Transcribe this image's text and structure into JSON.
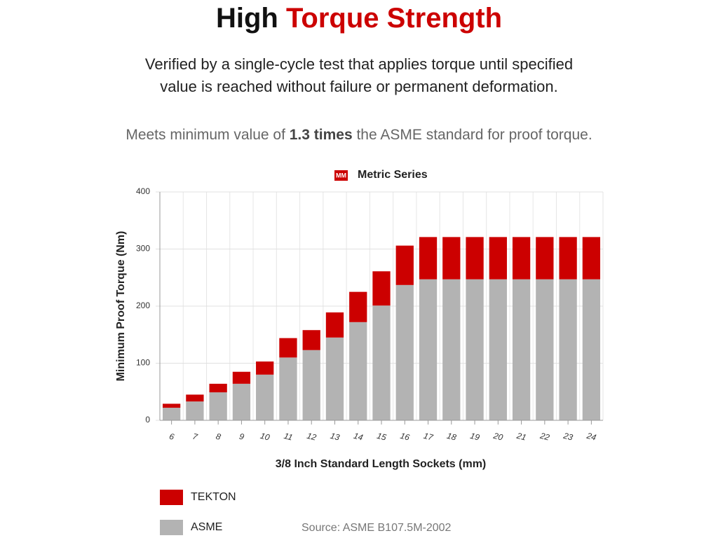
{
  "header": {
    "title_lead": "High",
    "title_accent": "Torque Strength",
    "subtitle_lines": [
      "Verified by a single-cycle test that applies torque until specified",
      "value is reached without failure or permanent deformation."
    ],
    "note_parts": [
      "Meets minimum value of ",
      "1.3 times",
      " the ASME standard for proof torque."
    ]
  },
  "chart_data": {
    "type": "bar",
    "stacked": true,
    "legend_badge": "MM",
    "legend_title": "Metric Series",
    "x_label": "3/8 Inch Standard Length Sockets (mm)",
    "y_label": "Minimum Proof Torque (Nm)",
    "categories": [
      "6",
      "7",
      "8",
      "9",
      "10",
      "11",
      "12",
      "13",
      "14",
      "15",
      "16",
      "17",
      "18",
      "19",
      "20",
      "21",
      "22",
      "23",
      "24"
    ],
    "series": [
      {
        "name": "ASME",
        "color": "#b3b3b3",
        "values": [
          22,
          33,
          49,
          64,
          80,
          110,
          123,
          145,
          172,
          201,
          237,
          247,
          247,
          247,
          247,
          247,
          247,
          247,
          247
        ]
      },
      {
        "name": "TEKTON",
        "color": "#cc0000",
        "values": [
          7,
          12,
          15,
          21,
          23,
          34,
          35,
          44,
          53,
          60,
          69,
          74,
          74,
          74,
          74,
          74,
          74,
          74,
          74
        ]
      }
    ],
    "ylim": [
      0,
      400
    ],
    "yticks": [
      0,
      100,
      200,
      300,
      400
    ],
    "grid": true,
    "source": "Source: ASME B107.5M-2002"
  }
}
